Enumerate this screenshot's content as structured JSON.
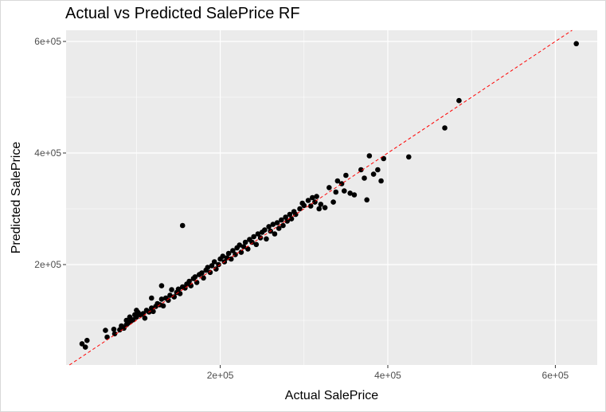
{
  "chart_data": {
    "type": "scatter",
    "title": "Actual vs Predicted SalePrice RF",
    "xlabel": "Actual SalePrice",
    "ylabel": "Predicted SalePrice",
    "xlim": [
      16000,
      650000
    ],
    "ylim": [
      20000,
      620000
    ],
    "x_ticks": [
      200000,
      400000,
      600000
    ],
    "x_tick_labels": [
      "2e+05",
      "4e+05",
      "6e+05"
    ],
    "y_ticks": [
      200000,
      400000,
      600000
    ],
    "y_tick_labels": [
      "2e+05",
      "4e+05",
      "6e+05"
    ],
    "grid": true,
    "colors": {
      "panel": "#ebebeb",
      "grid": "#ffffff",
      "points": "#000000",
      "reference_line": "#ff0000"
    },
    "reference_line": {
      "slope": 1,
      "intercept": 0,
      "style": "dashed"
    },
    "series": [
      {
        "points": [
          [
            35000,
            58000
          ],
          [
            39000,
            52000
          ],
          [
            41000,
            64000
          ],
          [
            63000,
            82000
          ],
          [
            65000,
            70000
          ],
          [
            73000,
            84000
          ],
          [
            74000,
            76000
          ],
          [
            80000,
            83000
          ],
          [
            82000,
            90000
          ],
          [
            85000,
            86000
          ],
          [
            88000,
            92000
          ],
          [
            90000,
            95000
          ],
          [
            93000,
            98000
          ],
          [
            96000,
            101000
          ],
          [
            98000,
            110000
          ],
          [
            100000,
            106000
          ],
          [
            102000,
            114000
          ],
          [
            105000,
            110000
          ],
          [
            108000,
            112000
          ],
          [
            110000,
            104000
          ],
          [
            112000,
            118000
          ],
          [
            115000,
            115000
          ],
          [
            118000,
            122000
          ],
          [
            120000,
            116000
          ],
          [
            123000,
            125000
          ],
          [
            125000,
            130000
          ],
          [
            128000,
            128000
          ],
          [
            130000,
            138000
          ],
          [
            132000,
            126000
          ],
          [
            135000,
            140000
          ],
          [
            138000,
            136000
          ],
          [
            140000,
            145000
          ],
          [
            142000,
            155000
          ],
          [
            145000,
            142000
          ],
          [
            148000,
            150000
          ],
          [
            150000,
            156000
          ],
          [
            152000,
            148000
          ],
          [
            155000,
            160000
          ],
          [
            158000,
            158000
          ],
          [
            160000,
            165000
          ],
          [
            163000,
            170000
          ],
          [
            165000,
            162000
          ],
          [
            168000,
            175000
          ],
          [
            170000,
            178000
          ],
          [
            172000,
            168000
          ],
          [
            175000,
            182000
          ],
          [
            178000,
            185000
          ],
          [
            180000,
            176000
          ],
          [
            183000,
            190000
          ],
          [
            185000,
            195000
          ],
          [
            188000,
            186000
          ],
          [
            190000,
            198000
          ],
          [
            193000,
            205000
          ],
          [
            195000,
            192000
          ],
          [
            198000,
            200000
          ],
          [
            200000,
            210000
          ],
          [
            203000,
            215000
          ],
          [
            205000,
            205000
          ],
          [
            208000,
            212000
          ],
          [
            210000,
            220000
          ],
          [
            213000,
            210000
          ],
          [
            215000,
            225000
          ],
          [
            218000,
            218000
          ],
          [
            220000,
            230000
          ],
          [
            223000,
            235000
          ],
          [
            225000,
            222000
          ],
          [
            228000,
            232000
          ],
          [
            230000,
            240000
          ],
          [
            233000,
            228000
          ],
          [
            235000,
            245000
          ],
          [
            238000,
            240000
          ],
          [
            240000,
            250000
          ],
          [
            243000,
            236000
          ],
          [
            245000,
            255000
          ],
          [
            248000,
            248000
          ],
          [
            250000,
            258000
          ],
          [
            253000,
            262000
          ],
          [
            255000,
            246000
          ],
          [
            258000,
            268000
          ],
          [
            260000,
            260000
          ],
          [
            263000,
            272000
          ],
          [
            265000,
            255000
          ],
          [
            268000,
            275000
          ],
          [
            270000,
            265000
          ],
          [
            273000,
            280000
          ],
          [
            275000,
            270000
          ],
          [
            278000,
            285000
          ],
          [
            280000,
            278000
          ],
          [
            283000,
            290000
          ],
          [
            285000,
            282000
          ],
          [
            288000,
            295000
          ],
          [
            290000,
            290000
          ],
          [
            295000,
            300000
          ],
          [
            298000,
            310000
          ],
          [
            300000,
            306000
          ],
          [
            305000,
            315000
          ],
          [
            308000,
            305000
          ],
          [
            310000,
            320000
          ],
          [
            313000,
            312000
          ],
          [
            315000,
            322000
          ],
          [
            318000,
            300000
          ],
          [
            320000,
            308000
          ],
          [
            325000,
            302000
          ],
          [
            330000,
            338000
          ],
          [
            335000,
            312000
          ],
          [
            338000,
            330000
          ],
          [
            340000,
            350000
          ],
          [
            345000,
            345000
          ],
          [
            348000,
            332000
          ],
          [
            350000,
            360000
          ],
          [
            355000,
            328000
          ],
          [
            360000,
            325000
          ],
          [
            368000,
            370000
          ],
          [
            372000,
            355000
          ],
          [
            375000,
            316000
          ],
          [
            378000,
            395000
          ],
          [
            383000,
            362000
          ],
          [
            388000,
            370000
          ],
          [
            392000,
            350000
          ],
          [
            395000,
            390000
          ],
          [
            425000,
            393000
          ],
          [
            468000,
            445000
          ],
          [
            485000,
            494000
          ],
          [
            155000,
            270000
          ],
          [
            130000,
            162000
          ],
          [
            118000,
            140000
          ],
          [
            100000,
            118000
          ],
          [
            92000,
            106000
          ],
          [
            88000,
            100000
          ],
          [
            625000,
            596000
          ]
        ]
      }
    ]
  }
}
